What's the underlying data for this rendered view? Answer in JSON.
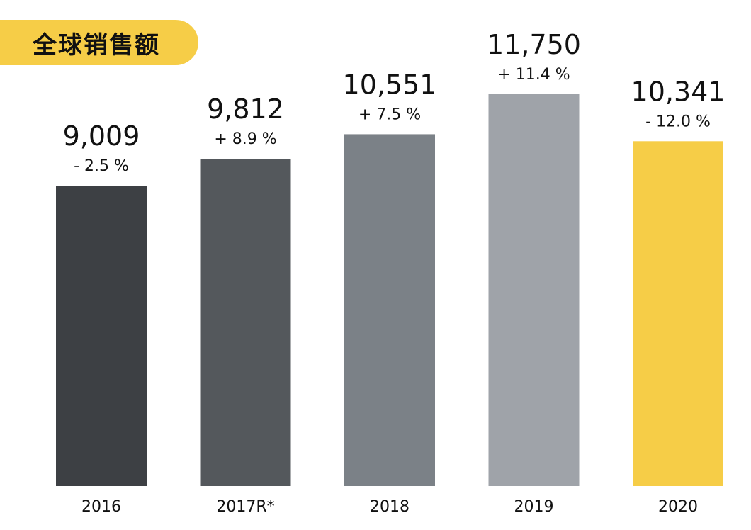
{
  "chart_data": {
    "type": "bar",
    "title": "全球销售额",
    "categories": [
      "2016",
      "2017R*",
      "2018",
      "2019",
      "2020"
    ],
    "values": [
      9009,
      9812,
      10551,
      11750,
      10341
    ],
    "value_labels": [
      "9,009",
      "9,812",
      "10,551",
      "11,750",
      "10,341"
    ],
    "change_labels": [
      "- 2.5 %",
      "+ 8.9 %",
      "+ 7.5 %",
      "+ 11.4 %",
      "- 12.0 %"
    ],
    "colors": [
      "#3d4044",
      "#54585c",
      "#7b8187",
      "#9fa3a9",
      "#f6cd47"
    ],
    "ylim": [
      0,
      11750
    ],
    "grid": false,
    "legend": "none"
  },
  "theme": {
    "title_background": "#f6cd47",
    "text_color": "#111111"
  }
}
